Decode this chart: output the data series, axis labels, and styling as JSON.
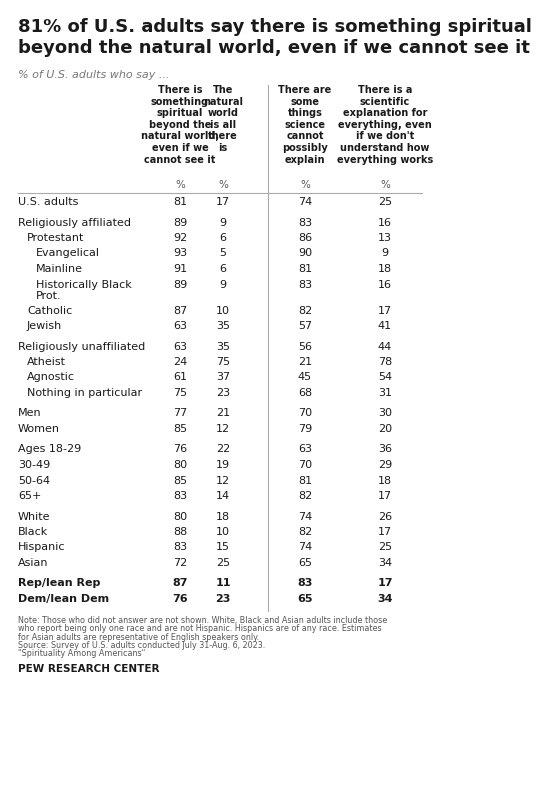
{
  "title": "81% of U.S. adults say there is something spiritual\nbeyond the natural world, even if we cannot see it",
  "subtitle": "% of U.S. adults who say ...",
  "col_headers": [
    "There is\nsomething\nspiritual\nbeyond the\nnatural world,\neven if we\ncannot see it",
    "The\nnatural\nworld\nis all\nthere\nis",
    "There are\nsome\nthings\nscience\ncannot\npossibly\nexplain",
    "There is a\nscientific\nexplanation for\neverything, even\nif we don't\nunderstand how\neverything works"
  ],
  "rows": [
    {
      "label": "U.S. adults",
      "indent": 0,
      "values": [
        81,
        17,
        74,
        25
      ],
      "spacer_before": false,
      "bold": false
    },
    {
      "label": "Religiously affiliated",
      "indent": 0,
      "values": [
        89,
        9,
        83,
        16
      ],
      "spacer_before": true,
      "bold": false
    },
    {
      "label": "Protestant",
      "indent": 1,
      "values": [
        92,
        6,
        86,
        13
      ],
      "spacer_before": false,
      "bold": false
    },
    {
      "label": "Evangelical",
      "indent": 2,
      "values": [
        93,
        5,
        90,
        9
      ],
      "spacer_before": false,
      "bold": false
    },
    {
      "label": "Mainline",
      "indent": 2,
      "values": [
        91,
        6,
        81,
        18
      ],
      "spacer_before": false,
      "bold": false
    },
    {
      "label": "Historically Black\nProt.",
      "indent": 2,
      "values": [
        89,
        9,
        83,
        16
      ],
      "spacer_before": false,
      "bold": false
    },
    {
      "label": "Catholic",
      "indent": 1,
      "values": [
        87,
        10,
        82,
        17
      ],
      "spacer_before": false,
      "bold": false
    },
    {
      "label": "Jewish",
      "indent": 1,
      "values": [
        63,
        35,
        57,
        41
      ],
      "spacer_before": false,
      "bold": false
    },
    {
      "label": "Religiously unaffiliated",
      "indent": 0,
      "values": [
        63,
        35,
        56,
        44
      ],
      "spacer_before": true,
      "bold": false
    },
    {
      "label": "Atheist",
      "indent": 1,
      "values": [
        24,
        75,
        21,
        78
      ],
      "spacer_before": false,
      "bold": false
    },
    {
      "label": "Agnostic",
      "indent": 1,
      "values": [
        61,
        37,
        45,
        54
      ],
      "spacer_before": false,
      "bold": false
    },
    {
      "label": "Nothing in particular",
      "indent": 1,
      "values": [
        75,
        23,
        68,
        31
      ],
      "spacer_before": false,
      "bold": false
    },
    {
      "label": "Men",
      "indent": 0,
      "values": [
        77,
        21,
        70,
        30
      ],
      "spacer_before": true,
      "bold": false
    },
    {
      "label": "Women",
      "indent": 0,
      "values": [
        85,
        12,
        79,
        20
      ],
      "spacer_before": false,
      "bold": false
    },
    {
      "label": "Ages 18-29",
      "indent": 0,
      "values": [
        76,
        22,
        63,
        36
      ],
      "spacer_before": true,
      "bold": false
    },
    {
      "label": "30-49",
      "indent": 0,
      "values": [
        80,
        19,
        70,
        29
      ],
      "spacer_before": false,
      "bold": false
    },
    {
      "label": "50-64",
      "indent": 0,
      "values": [
        85,
        12,
        81,
        18
      ],
      "spacer_before": false,
      "bold": false
    },
    {
      "label": "65+",
      "indent": 0,
      "values": [
        83,
        14,
        82,
        17
      ],
      "spacer_before": false,
      "bold": false
    },
    {
      "label": "White",
      "indent": 0,
      "values": [
        80,
        18,
        74,
        26
      ],
      "spacer_before": true,
      "bold": false
    },
    {
      "label": "Black",
      "indent": 0,
      "values": [
        88,
        10,
        82,
        17
      ],
      "spacer_before": false,
      "bold": false
    },
    {
      "label": "Hispanic",
      "indent": 0,
      "values": [
        83,
        15,
        74,
        25
      ],
      "spacer_before": false,
      "bold": false
    },
    {
      "label": "Asian",
      "indent": 0,
      "values": [
        72,
        25,
        65,
        34
      ],
      "spacer_before": false,
      "bold": false
    },
    {
      "label": "Rep/lean Rep",
      "indent": 0,
      "values": [
        87,
        11,
        83,
        17
      ],
      "spacer_before": true,
      "bold": true
    },
    {
      "label": "Dem/lean Dem",
      "indent": 0,
      "values": [
        76,
        23,
        65,
        34
      ],
      "spacer_before": false,
      "bold": true
    }
  ],
  "footnote1": "Note: Those who did not answer are not shown. White, Black and Asian adults include those",
  "footnote2": "who report being only one race and are not Hispanic. Hispanics are of any race. Estimates",
  "footnote3": "for Asian adults are representative of English speakers only.",
  "footnote4": "Source: Survey of U.S. adults conducted July 31-Aug. 6, 2023.",
  "footnote5": "\"Spirituality Among Americans\"",
  "source_label": "PEW RESEARCH CENTER",
  "bg_color": "#ffffff",
  "text_color": "#1a1a1a",
  "title_color": "#1a1a1a",
  "subtitle_color": "#777777",
  "header_color": "#1a1a1a",
  "gray_text_color": "#555555",
  "divider_color": "#aaaaaa",
  "line_color": "#cccccc"
}
